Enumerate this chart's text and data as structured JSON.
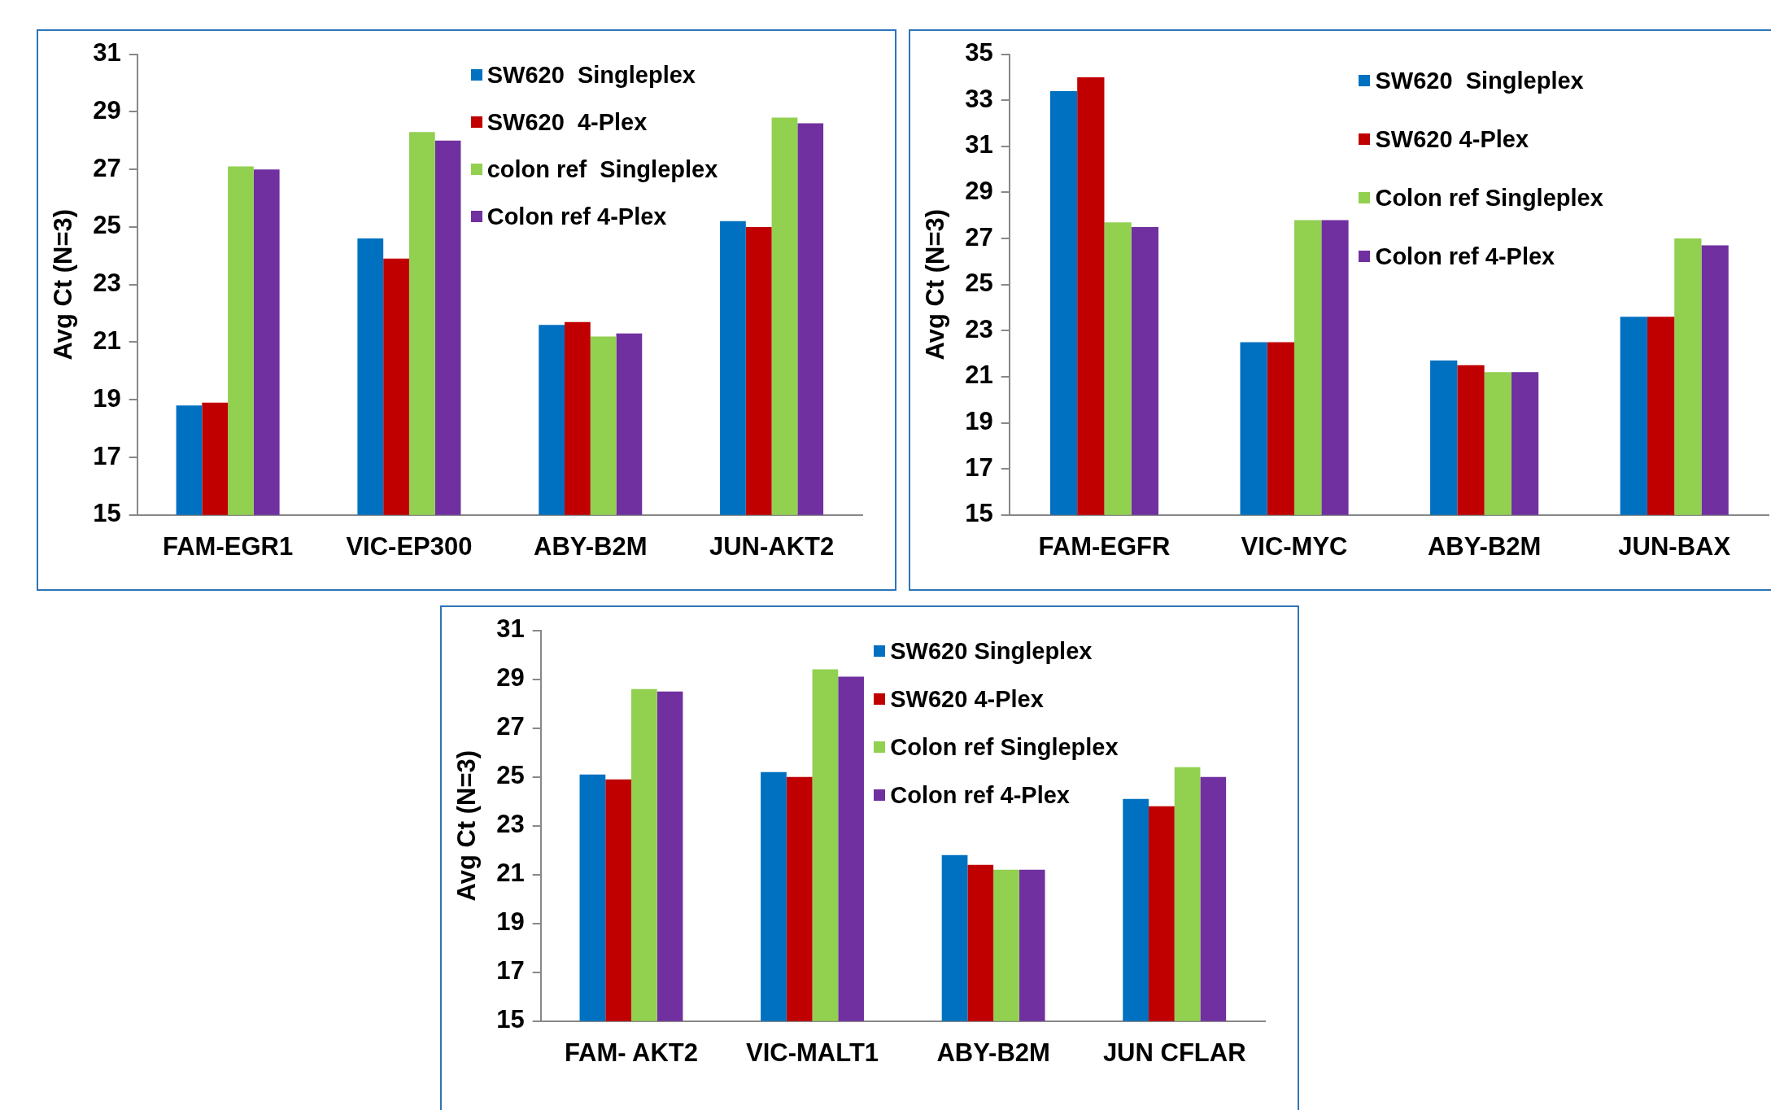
{
  "chart_data": [
    {
      "type": "bar",
      "ylabel": "Avg Ct (N=3)",
      "categories": [
        "FAM-EGR1",
        "VIC-EP300",
        "ABY-B2M",
        "JUN-AKT2"
      ],
      "ylim": [
        15,
        31
      ],
      "yticks": [
        15,
        17,
        19,
        21,
        23,
        25,
        27,
        29,
        31
      ],
      "grid": false,
      "legend": "top right",
      "series": [
        {
          "name": "SW620  Singleplex",
          "color": "#0070c0",
          "values": [
            18.8,
            24.6,
            21.6,
            25.2
          ]
        },
        {
          "name": "SW620  4-Plex",
          "color": "#c00000",
          "values": [
            18.9,
            23.9,
            21.7,
            25.0
          ]
        },
        {
          "name": "colon ref  Singleplex",
          "color": "#92d050",
          "values": [
            27.1,
            28.3,
            21.2,
            28.8
          ]
        },
        {
          "name": "Colon ref 4-Plex",
          "color": "#7030a0",
          "values": [
            27.0,
            28.0,
            21.3,
            28.6
          ]
        }
      ]
    },
    {
      "type": "bar",
      "ylabel": "Avg Ct (N=3)",
      "categories": [
        "FAM-EGFR",
        "VIC-MYC",
        "ABY-B2M",
        "JUN-BAX"
      ],
      "ylim": [
        15,
        35
      ],
      "yticks": [
        15,
        17,
        19,
        21,
        23,
        25,
        27,
        29,
        31,
        33,
        35
      ],
      "grid": false,
      "legend": "top right",
      "series": [
        {
          "name": "SW620  Singleplex",
          "color": "#0070c0",
          "values": [
            33.4,
            22.5,
            21.7,
            23.6
          ]
        },
        {
          "name": "SW620 4-Plex",
          "color": "#c00000",
          "values": [
            34.0,
            22.5,
            21.5,
            23.6
          ]
        },
        {
          "name": "Colon ref Singleplex",
          "color": "#92d050",
          "values": [
            27.7,
            27.8,
            21.2,
            27.0
          ]
        },
        {
          "name": "Colon ref 4-Plex",
          "color": "#7030a0",
          "values": [
            27.5,
            27.8,
            21.2,
            26.7
          ]
        }
      ]
    },
    {
      "type": "bar",
      "ylabel": "Avg Ct (N=3)",
      "categories": [
        "FAM- AKT2",
        "VIC-MALT1",
        "ABY-B2M",
        "JUN CFLAR"
      ],
      "ylim": [
        15,
        31
      ],
      "yticks": [
        15,
        17,
        19,
        21,
        23,
        25,
        27,
        29,
        31
      ],
      "grid": false,
      "legend": "top right",
      "series": [
        {
          "name": "SW620 Singleplex",
          "color": "#0070c0",
          "values": [
            25.1,
            25.2,
            21.8,
            24.1
          ]
        },
        {
          "name": "SW620 4-Plex",
          "color": "#c00000",
          "values": [
            24.9,
            25.0,
            21.4,
            23.8
          ]
        },
        {
          "name": "Colon ref Singleplex",
          "color": "#92d050",
          "values": [
            28.6,
            29.4,
            21.2,
            25.4
          ]
        },
        {
          "name": "Colon ref 4-Plex",
          "color": "#7030a0",
          "values": [
            28.5,
            29.1,
            21.2,
            25.0
          ]
        }
      ]
    }
  ]
}
